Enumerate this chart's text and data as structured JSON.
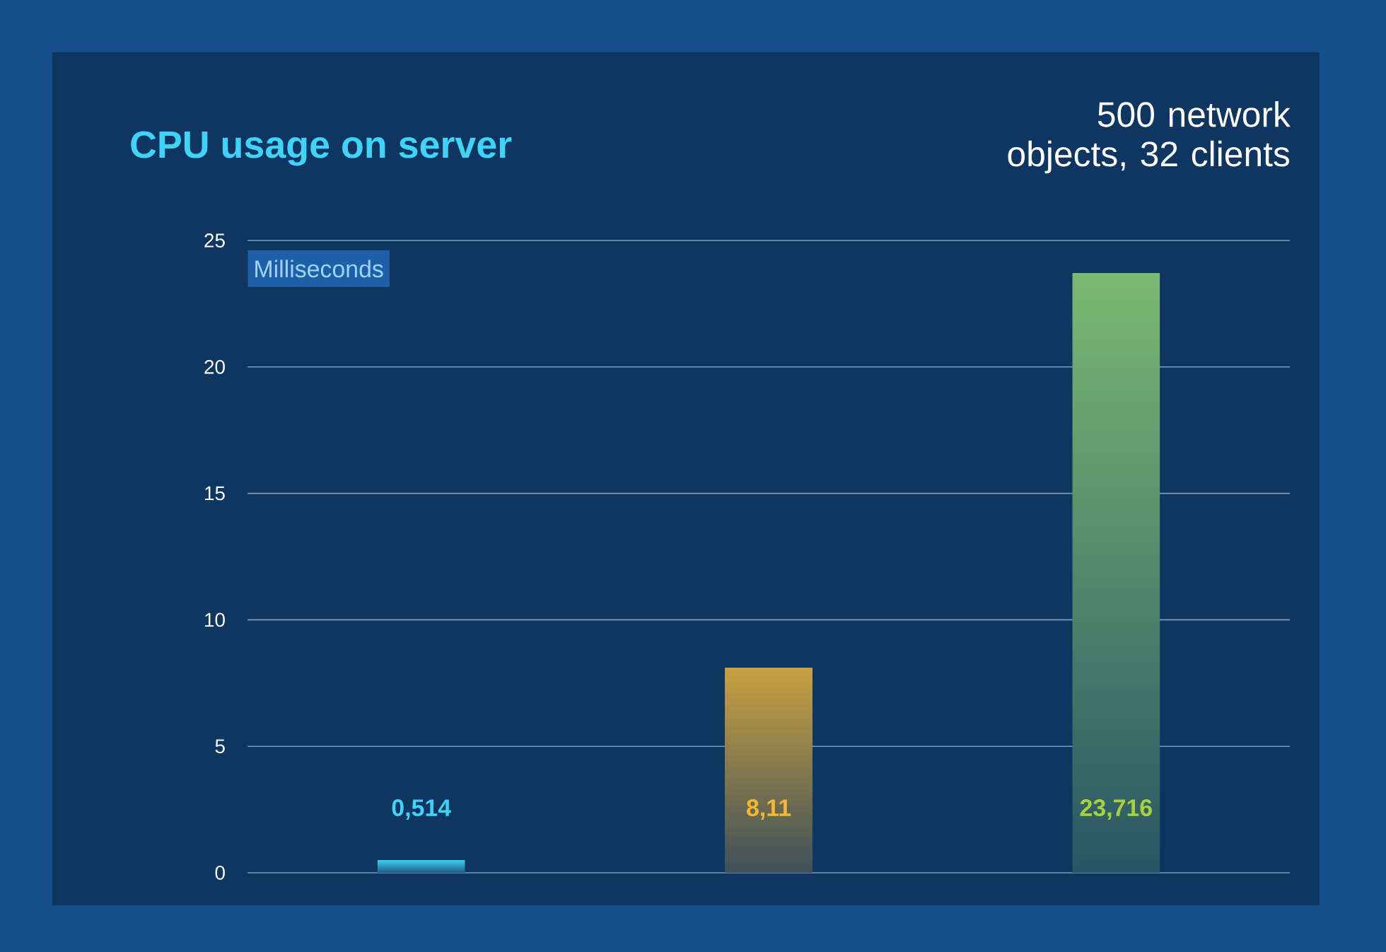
{
  "chart_data": {
    "type": "bar",
    "title": "CPU usage on server",
    "subtitle": "500 network objects, 32 clients",
    "ylabel": "Milliseconds",
    "categories": [
      null,
      null,
      null
    ],
    "values": [
      0.514,
      8.11,
      23.716
    ],
    "colors": [
      "#3fd3f7",
      "#c9a141",
      "#7bba72"
    ],
    "value_labels": [
      "0,514",
      "8,11",
      "23,716"
    ],
    "ylim": [
      0,
      25
    ],
    "yticks": [
      0,
      5,
      10,
      15,
      20,
      25
    ],
    "grid": "y"
  }
}
